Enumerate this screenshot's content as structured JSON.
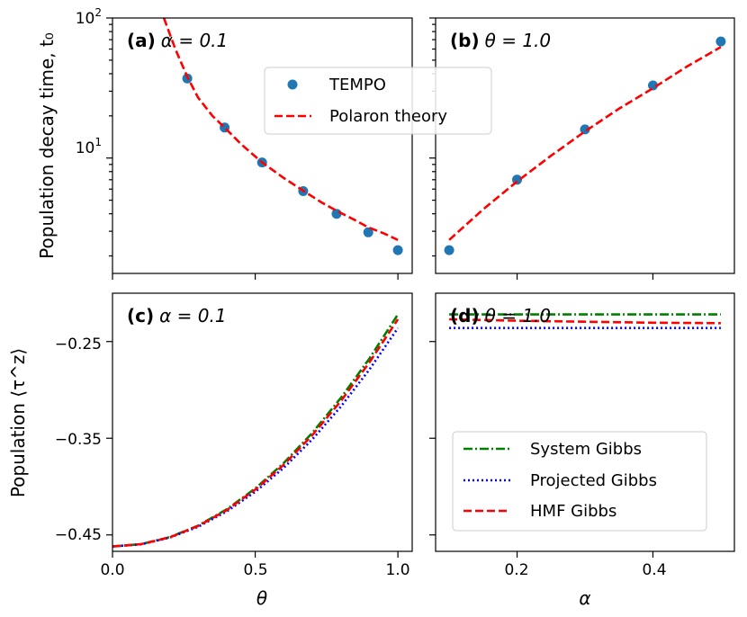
{
  "chart_data": [
    {
      "id": "a",
      "type": "scatter+line",
      "panel_label": "(a)",
      "panel_param": "α = 0.1",
      "ylabel": "Population decay time, t₀",
      "yscale": "log",
      "ylim": [
        1.5,
        100
      ],
      "yticks": [
        {
          "value": 10,
          "base": "10",
          "exp": "1"
        },
        {
          "value": 100,
          "base": "10",
          "exp": "2"
        }
      ],
      "xlim": [
        0,
        1.05
      ],
      "series": [
        {
          "name": "TEMPO",
          "kind": "markers",
          "color": "#1f77b4",
          "x": [
            0.262,
            0.393,
            0.524,
            0.668,
            0.785,
            0.896,
            1.0
          ],
          "y": [
            37,
            16.5,
            9.3,
            5.8,
            4.0,
            2.95,
            2.2
          ]
        },
        {
          "name": "Polaron theory",
          "kind": "dashed",
          "color": "#ff0000",
          "x": [
            0.18,
            0.22,
            0.262,
            0.3,
            0.35,
            0.393,
            0.45,
            0.524,
            0.6,
            0.668,
            0.73,
            0.785,
            0.85,
            0.896,
            0.95,
            1.0
          ],
          "y": [
            100,
            60,
            38,
            27,
            20,
            16.5,
            12.6,
            9.3,
            7.2,
            5.85,
            4.85,
            4.2,
            3.6,
            3.2,
            2.9,
            2.6
          ]
        }
      ]
    },
    {
      "id": "b",
      "type": "scatter+line",
      "panel_label": "(b)",
      "panel_param": "θ = 1.0",
      "yscale": "log",
      "ylim": [
        1.5,
        100
      ],
      "xlim": [
        0.08,
        0.52
      ],
      "series": [
        {
          "name": "TEMPO",
          "kind": "markers",
          "color": "#1f77b4",
          "x": [
            0.1,
            0.2,
            0.3,
            0.4,
            0.5
          ],
          "y": [
            2.2,
            7.0,
            16.0,
            33.0,
            68.0
          ]
        },
        {
          "name": "Polaron theory",
          "kind": "dashed",
          "color": "#ff0000",
          "x": [
            0.1,
            0.15,
            0.2,
            0.25,
            0.3,
            0.35,
            0.4,
            0.45,
            0.5
          ],
          "y": [
            2.6,
            4.3,
            6.8,
            10.4,
            15.5,
            22.5,
            31.5,
            45.0,
            62.0
          ]
        }
      ]
    },
    {
      "id": "c",
      "type": "line",
      "panel_label": "(c)",
      "panel_param": "α = 0.1",
      "ylabel": "Population ⟨τ^z⟩",
      "xlabel": "θ",
      "ylim": [
        -0.467,
        -0.2
      ],
      "xlim": [
        0,
        1.05
      ],
      "yticks": [
        "−0.25",
        "−0.35",
        "−0.45"
      ],
      "yticks_values": [
        -0.25,
        -0.35,
        -0.45
      ],
      "xticks": [
        "0.0",
        "0.5",
        "1.0"
      ],
      "xticks_values": [
        0.0,
        0.5,
        1.0
      ],
      "series": [
        {
          "name": "System Gibbs",
          "kind": "dashdot",
          "color": "#008000",
          "x": [
            0,
            0.1,
            0.2,
            0.3,
            0.4,
            0.5,
            0.6,
            0.7,
            0.8,
            0.9,
            1.0
          ],
          "y": [
            -0.462,
            -0.4596,
            -0.4524,
            -0.4404,
            -0.4236,
            -0.402,
            -0.3756,
            -0.3444,
            -0.3084,
            -0.2676,
            -0.222
          ]
        },
        {
          "name": "Projected Gibbs",
          "kind": "dotted",
          "color": "#0000ff",
          "x": [
            0,
            0.1,
            0.2,
            0.3,
            0.4,
            0.5,
            0.6,
            0.7,
            0.8,
            0.9,
            1.0
          ],
          "y": [
            -0.462,
            -0.4597,
            -0.4529,
            -0.4416,
            -0.4257,
            -0.4054,
            -0.3806,
            -0.3512,
            -0.3173,
            -0.279,
            -0.236
          ]
        },
        {
          "name": "HMF Gibbs",
          "kind": "dashed",
          "color": "#ff0000",
          "x": [
            0,
            0.1,
            0.2,
            0.3,
            0.4,
            0.5,
            0.6,
            0.7,
            0.8,
            0.9,
            1.0
          ],
          "y": [
            -0.462,
            -0.4596,
            -0.4526,
            -0.4408,
            -0.4244,
            -0.4032,
            -0.3774,
            -0.3468,
            -0.3116,
            -0.2716,
            -0.227
          ]
        }
      ]
    },
    {
      "id": "d",
      "type": "line",
      "panel_label": "(d)",
      "panel_param": "θ = 1.0",
      "xlabel": "α",
      "ylim": [
        -0.467,
        -0.2
      ],
      "xlim": [
        0.08,
        0.52
      ],
      "xticks": [
        "0.2",
        "0.4"
      ],
      "xticks_values": [
        0.2,
        0.4
      ],
      "series": [
        {
          "name": "System Gibbs",
          "kind": "dashdot",
          "color": "#008000",
          "x": [
            0.1,
            0.5
          ],
          "y": [
            -0.222,
            -0.222
          ]
        },
        {
          "name": "Projected Gibbs",
          "kind": "dotted",
          "color": "#0000ff",
          "x": [
            0.1,
            0.5
          ],
          "y": [
            -0.236,
            -0.236
          ]
        },
        {
          "name": "HMF Gibbs",
          "kind": "dashed",
          "color": "#ff0000",
          "x": [
            0.1,
            0.2,
            0.3,
            0.4,
            0.5
          ],
          "y": [
            -0.227,
            -0.2285,
            -0.2295,
            -0.2305,
            -0.231
          ]
        }
      ]
    }
  ],
  "legend_top": {
    "location": "upper-center of panel (a)",
    "entries": [
      "TEMPO",
      "Polaron theory"
    ]
  },
  "legend_bottom": {
    "location": "lower-center of panel (d)",
    "entries": [
      "System Gibbs",
      "Projected Gibbs",
      "HMF Gibbs"
    ]
  }
}
